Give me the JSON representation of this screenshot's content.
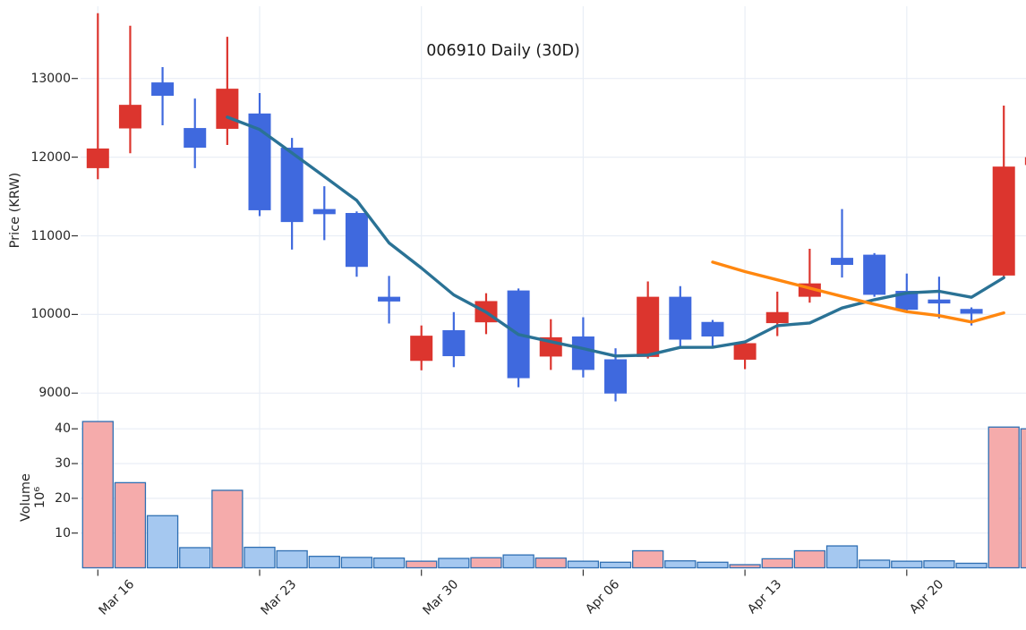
{
  "chart": {
    "title": "006910 Daily (30D)"
  },
  "axes": {
    "price": {
      "label": "Price (KRW)",
      "ticks": [
        "13000",
        "12000",
        "11000",
        "10000",
        "9000"
      ]
    },
    "volume": {
      "label": "Volume",
      "multiplier": "10⁶",
      "ticks": [
        "10",
        "20",
        "30",
        "40"
      ]
    },
    "x": {
      "ticks": [
        {
          "label": "Mar 16",
          "day": 0
        },
        {
          "label": "Mar 23",
          "day": 5
        },
        {
          "label": "Mar 30",
          "day": 10
        },
        {
          "label": "Apr 06",
          "day": 15
        },
        {
          "label": "Apr 13",
          "day": 20
        },
        {
          "label": "Apr 20",
          "day": 25
        }
      ]
    }
  },
  "chart_data": {
    "type": "candlestick_with_volume",
    "title": "006910 Daily (30D)",
    "symbol": "006910",
    "period_days": 30,
    "price_ylim": [
      8750,
      13930
    ],
    "volume_ylim_millions": [
      0,
      45
    ],
    "grid": true,
    "up_convention": "red = up (close > open), blue = down",
    "candles": [
      {
        "date": "Mar 16",
        "open": 11860,
        "high": 13830,
        "low": 11720,
        "close": 12110,
        "volume_m": 42.1,
        "dir": "up"
      },
      {
        "date": "Mar 17",
        "open": 12365,
        "high": 13670,
        "low": 12050,
        "close": 12665,
        "volume_m": 24.5,
        "dir": "up"
      },
      {
        "date": "Mar 18",
        "open": 12950,
        "high": 13145,
        "low": 12405,
        "close": 12780,
        "volume_m": 15.0,
        "dir": "down"
      },
      {
        "date": "Mar 19",
        "open": 12370,
        "high": 12745,
        "low": 11860,
        "close": 12120,
        "volume_m": 5.8,
        "dir": "down"
      },
      {
        "date": "Mar 20",
        "open": 12360,
        "high": 13530,
        "low": 12155,
        "close": 12870,
        "volume_m": 22.3,
        "dir": "up"
      },
      {
        "date": "Mar 23",
        "open": 12555,
        "high": 12815,
        "low": 11250,
        "close": 11325,
        "volume_m": 5.9,
        "dir": "down"
      },
      {
        "date": "Mar 24",
        "open": 12120,
        "high": 12245,
        "low": 10825,
        "close": 11175,
        "volume_m": 4.9,
        "dir": "down"
      },
      {
        "date": "Mar 25",
        "open": 11340,
        "high": 11630,
        "low": 10945,
        "close": 11275,
        "volume_m": 3.3,
        "dir": "down"
      },
      {
        "date": "Mar 26",
        "open": 11290,
        "high": 11310,
        "low": 10480,
        "close": 10605,
        "volume_m": 3.0,
        "dir": "down"
      },
      {
        "date": "Mar 27",
        "open": 10225,
        "high": 10490,
        "low": 9885,
        "close": 10165,
        "volume_m": 2.8,
        "dir": "down"
      },
      {
        "date": "Mar 30",
        "open": 9410,
        "high": 9860,
        "low": 9290,
        "close": 9730,
        "volume_m": 1.9,
        "dir": "up"
      },
      {
        "date": "Mar 31",
        "open": 9800,
        "high": 10030,
        "low": 9330,
        "close": 9470,
        "volume_m": 2.7,
        "dir": "down"
      },
      {
        "date": "Apr 01",
        "open": 9900,
        "high": 10270,
        "low": 9750,
        "close": 10170,
        "volume_m": 2.9,
        "dir": "up"
      },
      {
        "date": "Apr 02",
        "open": 10305,
        "high": 10330,
        "low": 9075,
        "close": 9190,
        "volume_m": 3.7,
        "dir": "down"
      },
      {
        "date": "Apr 03",
        "open": 9465,
        "high": 9940,
        "low": 9295,
        "close": 9710,
        "volume_m": 2.8,
        "dir": "up"
      },
      {
        "date": "Apr 06",
        "open": 9720,
        "high": 9965,
        "low": 9200,
        "close": 9295,
        "volume_m": 1.9,
        "dir": "down"
      },
      {
        "date": "Apr 07",
        "open": 9430,
        "high": 9570,
        "low": 8895,
        "close": 8995,
        "volume_m": 1.6,
        "dir": "down"
      },
      {
        "date": "Apr 08",
        "open": 9460,
        "high": 10420,
        "low": 9440,
        "close": 10225,
        "volume_m": 4.9,
        "dir": "up"
      },
      {
        "date": "Apr 09",
        "open": 10225,
        "high": 10360,
        "low": 9565,
        "close": 9680,
        "volume_m": 2.0,
        "dir": "down"
      },
      {
        "date": "Apr 10",
        "open": 9905,
        "high": 9930,
        "low": 9585,
        "close": 9720,
        "volume_m": 1.6,
        "dir": "down"
      },
      {
        "date": "Apr 13",
        "open": 9425,
        "high": 9660,
        "low": 9305,
        "close": 9635,
        "volume_m": 0.9,
        "dir": "up"
      },
      {
        "date": "Apr 14",
        "open": 9890,
        "high": 10290,
        "low": 9725,
        "close": 10030,
        "volume_m": 2.6,
        "dir": "up"
      },
      {
        "date": "Apr 15",
        "open": 10225,
        "high": 10835,
        "low": 10150,
        "close": 10395,
        "volume_m": 4.9,
        "dir": "up"
      },
      {
        "date": "Apr 16",
        "open": 10720,
        "high": 11340,
        "low": 10470,
        "close": 10630,
        "volume_m": 6.3,
        "dir": "down"
      },
      {
        "date": "Apr 17",
        "open": 10760,
        "high": 10780,
        "low": 10225,
        "close": 10250,
        "volume_m": 2.2,
        "dir": "down"
      },
      {
        "date": "Apr 20",
        "open": 10300,
        "high": 10520,
        "low": 10025,
        "close": 10060,
        "volume_m": 1.9,
        "dir": "down"
      },
      {
        "date": "Apr 21",
        "open": 10190,
        "high": 10480,
        "low": 9950,
        "close": 10140,
        "volume_m": 2.0,
        "dir": "down"
      },
      {
        "date": "Apr 22",
        "open": 10070,
        "high": 10090,
        "low": 9860,
        "close": 10010,
        "volume_m": 1.3,
        "dir": "down"
      },
      {
        "date": "Apr 23",
        "open": 10495,
        "high": 12655,
        "low": 10480,
        "close": 11880,
        "volume_m": 40.5,
        "dir": "up"
      },
      {
        "date": "Apr 24",
        "open": 11900,
        "high": 12100,
        "low": 11700,
        "close": 12000,
        "volume_m": 40.0,
        "dir": "up",
        "clipped_at_right_edge": true
      }
    ],
    "ma5": [
      null,
      null,
      null,
      null,
      12509,
      12352,
      12054,
      11753,
      11450,
      10909,
      10590,
      10249,
      10028,
      9745,
      9654,
      9567,
      9472,
      9483,
      9581,
      9583,
      9651,
      9858,
      9892,
      10082,
      10188,
      10273,
      10295,
      10218,
      10468,
      null
    ],
    "ma20": [
      null,
      null,
      null,
      null,
      null,
      null,
      null,
      null,
      null,
      null,
      null,
      null,
      null,
      null,
      null,
      null,
      null,
      null,
      null,
      10665,
      10545,
      10440,
      10335,
      10230,
      10130,
      10035,
      9985,
      9905,
      10020,
      null
    ],
    "colors": {
      "up": "#dc352e",
      "down": "#3f69de",
      "volume_up": "#f5abab",
      "volume_down": "#a5c8f0",
      "volume_edge": "#2f6fb3",
      "ma5": "#2a7295",
      "ma20": "#ff870f",
      "grid": "#e9eef6",
      "tick": "#333333",
      "text": "#262626",
      "background": "#ffffff"
    }
  }
}
